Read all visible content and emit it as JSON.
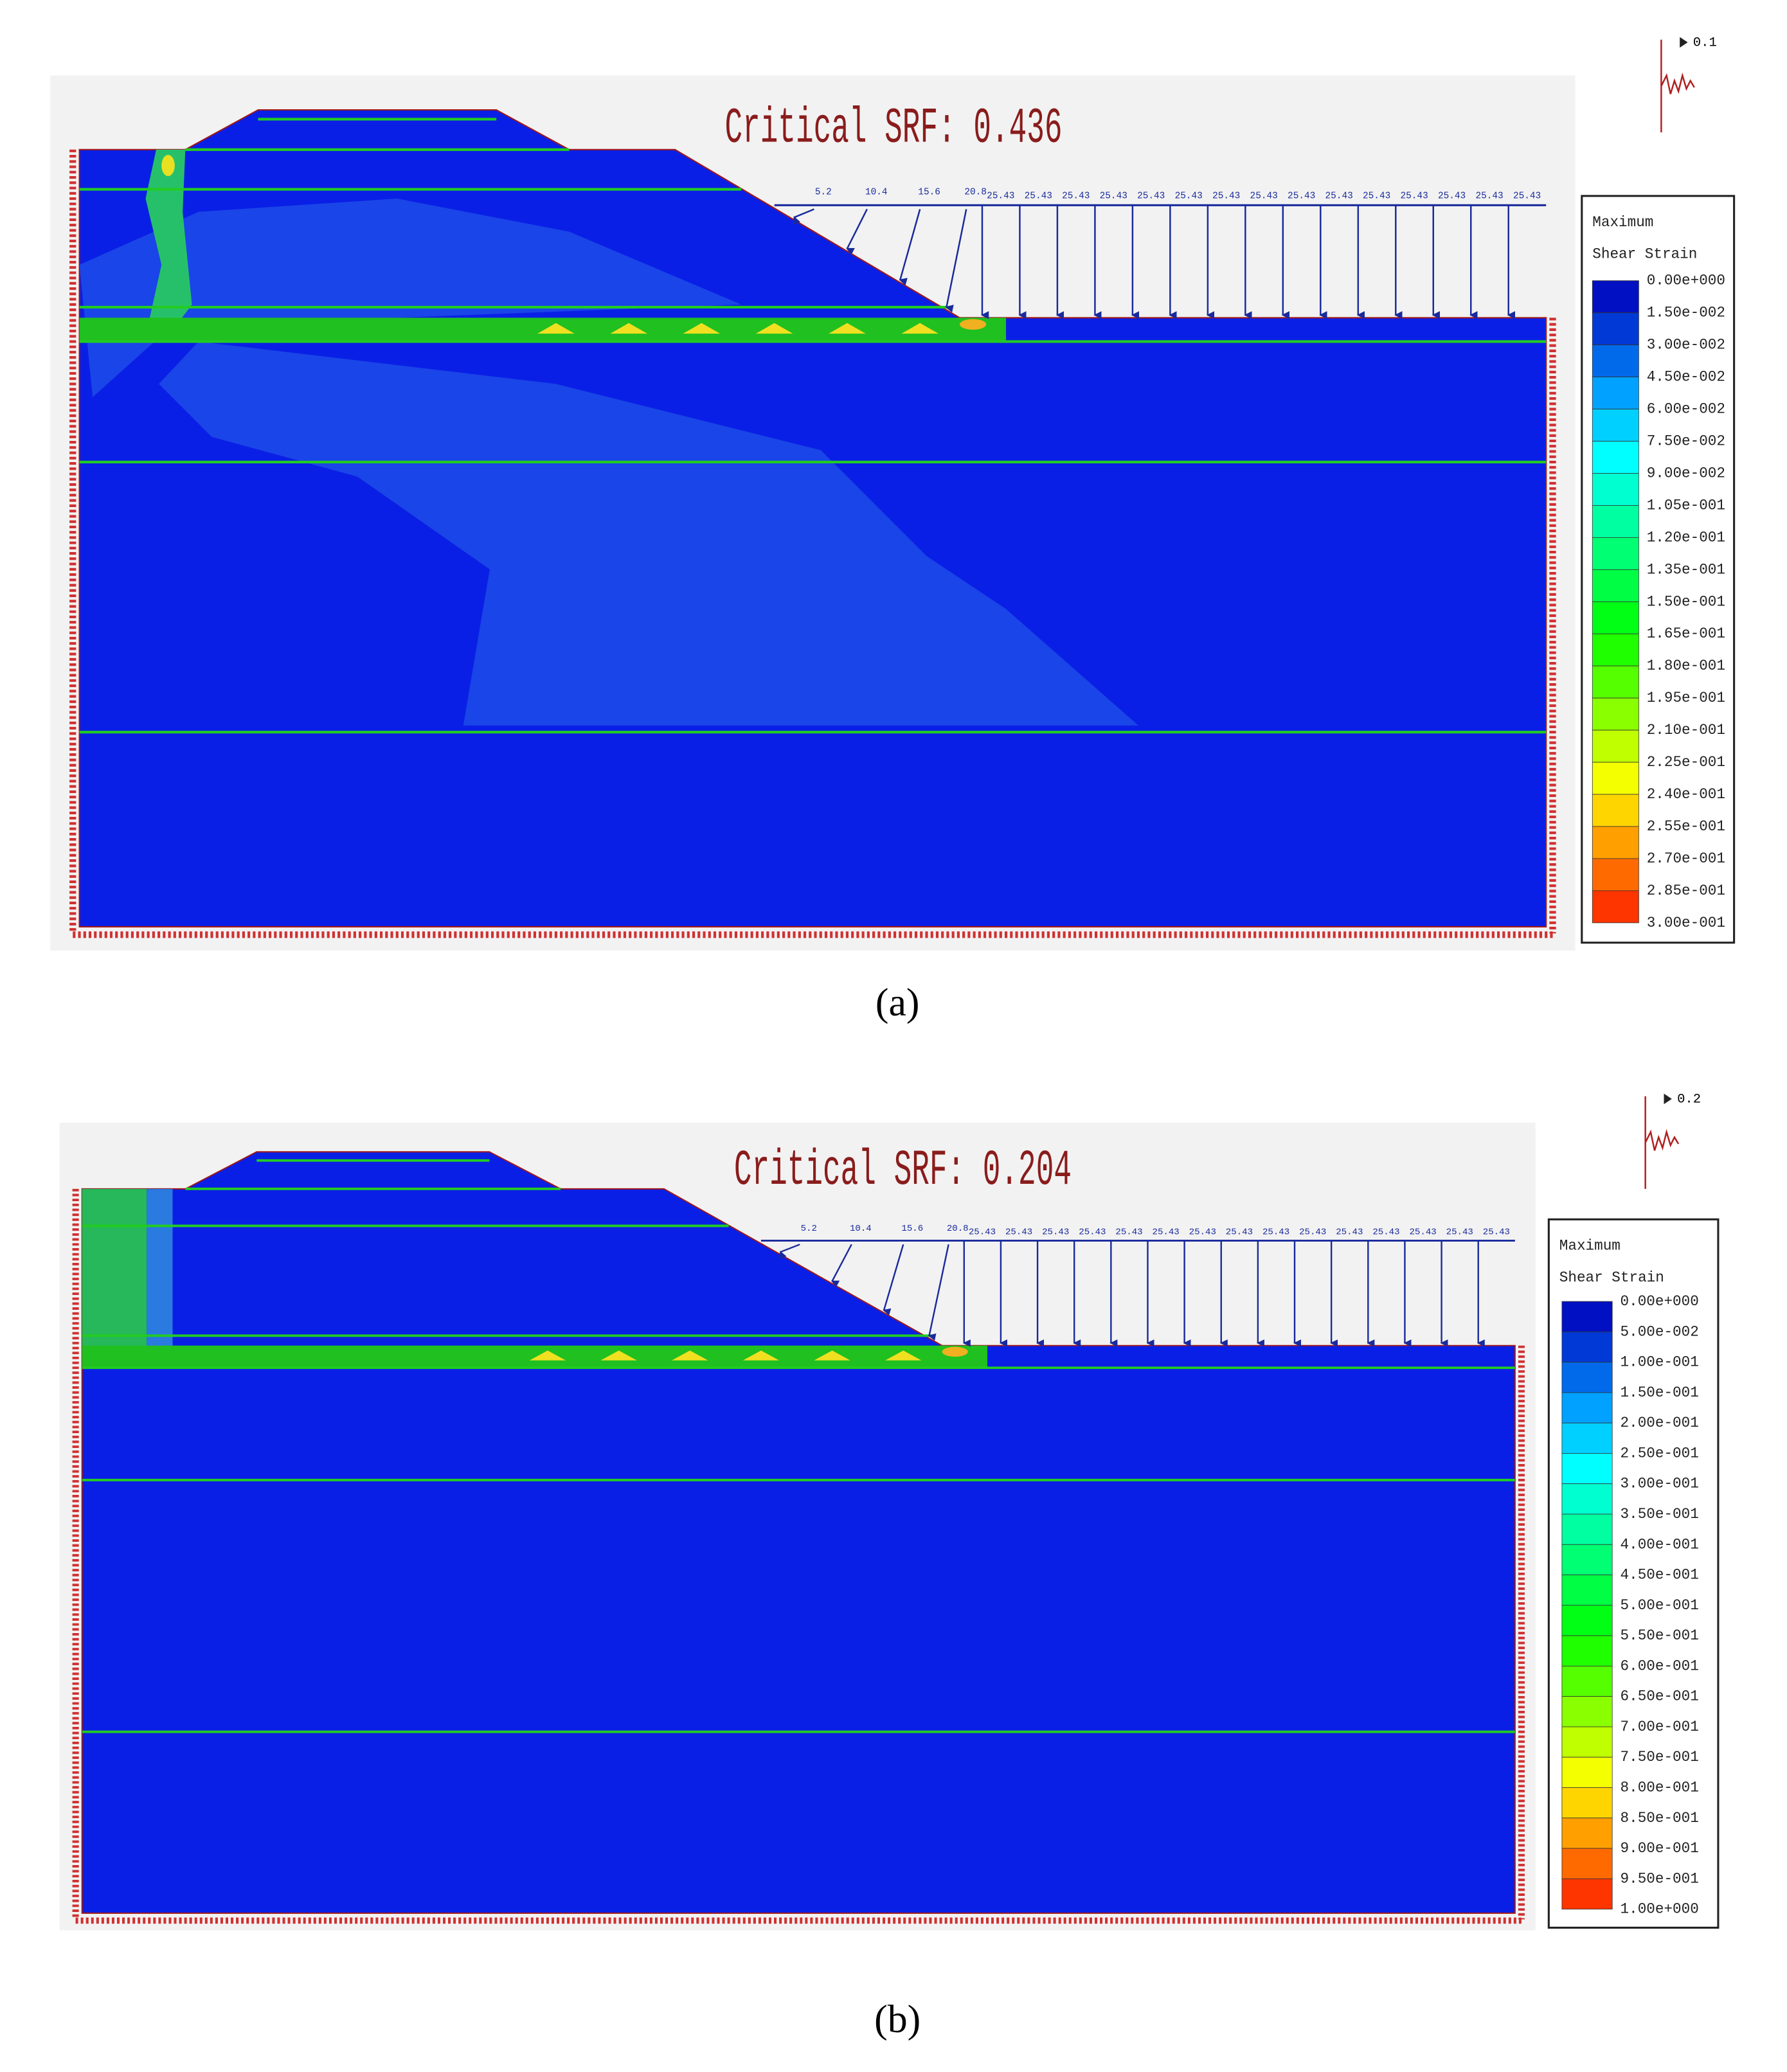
{
  "panels": [
    {
      "title": "Critical SRF: 0.436",
      "caption": "(a)",
      "seismic_label": "0.1",
      "legend_title": [
        "Maximum",
        "Shear Strain"
      ],
      "legend_labels": [
        "0.00e+000",
        "1.50e-002",
        "3.00e-002",
        "4.50e-002",
        "6.00e-002",
        "7.50e-002",
        "9.00e-002",
        "1.05e-001",
        "1.20e-001",
        "1.35e-001",
        "1.50e-001",
        "1.65e-001",
        "1.80e-001",
        "1.95e-001",
        "2.10e-001",
        "2.25e-001",
        "2.40e-001",
        "2.55e-001",
        "2.70e-001",
        "2.85e-001",
        "3.00e-001"
      ],
      "ramp_labels": [
        "5.2",
        "10.4",
        "15.6",
        "20.8"
      ],
      "uniform_label": "25.43"
    },
    {
      "title": "Critical SRF: 0.204",
      "caption": "(b)",
      "seismic_label": "0.2",
      "legend_title": [
        "Maximum",
        "Shear Strain"
      ],
      "legend_labels": [
        "0.00e+000",
        "5.00e-002",
        "1.00e-001",
        "1.50e-001",
        "2.00e-001",
        "2.50e-001",
        "3.00e-001",
        "3.50e-001",
        "4.00e-001",
        "4.50e-001",
        "5.00e-001",
        "5.50e-001",
        "6.00e-001",
        "6.50e-001",
        "7.00e-001",
        "7.50e-001",
        "8.00e-001",
        "8.50e-001",
        "9.00e-001",
        "9.50e-001",
        "1.00e+000"
      ],
      "ramp_labels": [
        "5.2",
        "10.4",
        "15.6",
        "20.8"
      ],
      "uniform_label": "25.43"
    }
  ]
}
